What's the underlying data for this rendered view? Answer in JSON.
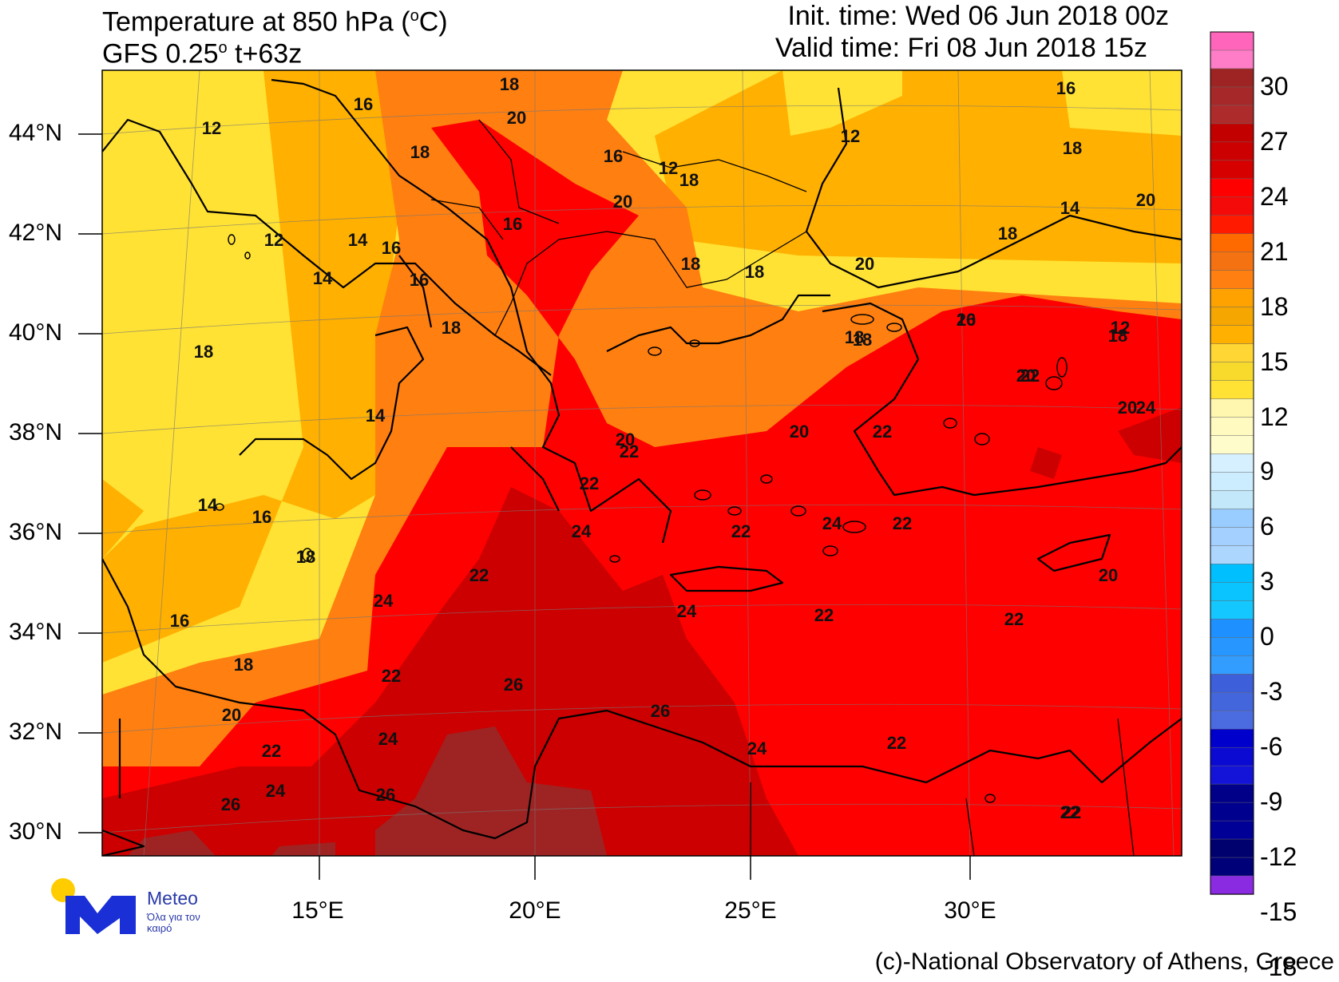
{
  "header": {
    "title_line1_pre": "Temperature at 850 hPa (",
    "title_line1_unit": "o",
    "title_line1_post": "C)",
    "title_line2_pre": "GFS 0.25",
    "title_line2_unit": "o",
    "title_line2_post": " t+63z",
    "init_time": "Init. time: Wed 06 Jun 2018 00z",
    "valid_time": "Valid time: Fri 08 Jun 2018 15z"
  },
  "axes": {
    "lat_labels": [
      "44°N",
      "42°N",
      "40°N",
      "38°N",
      "36°N",
      "34°N",
      "32°N",
      "30°N"
    ],
    "lon_labels": [
      "15°E",
      "20°E",
      "25°E",
      "30°E"
    ]
  },
  "colorbar": {
    "labels": [
      "30",
      "27",
      "24",
      "21",
      "18",
      "15",
      "12",
      "9",
      "6",
      "3",
      "0",
      "-3",
      "-6",
      "-9",
      "-12",
      "-15",
      "-18"
    ],
    "colors_top_to_bottom": [
      "#ff66bb",
      "#ff7dc6",
      "#9e2424",
      "#a62828",
      "#ae2b2b",
      "#c20000",
      "#cc0000",
      "#d60000",
      "#ff0000",
      "#f50a0a",
      "#ff1a00",
      "#ff6a00",
      "#f57212",
      "#ff7f10",
      "#ffa200",
      "#f5a600",
      "#ffb000",
      "#ffd633",
      "#f8da2c",
      "#ffe233",
      "#fff7b0",
      "#fffac0",
      "#fffccc",
      "#d6f0ff",
      "#ccecff",
      "#c2e8fa",
      "#99ccff",
      "#a3d0ff",
      "#add6ff",
      "#00bfff",
      "#0ac4ff",
      "#14c8ff",
      "#1e90ff",
      "#2896ff",
      "#329cff",
      "#3d5fd9",
      "#4366dd",
      "#4a6ce0",
      "#0000cc",
      "#0a0ad2",
      "#1414d9",
      "#000088",
      "#00008f",
      "#000096",
      "#00006f",
      "#000078",
      "#8a2be2"
    ]
  },
  "contour_labels": [
    "12",
    "16",
    "18",
    "20",
    "18",
    "16",
    "12",
    "12",
    "14",
    "14",
    "14",
    "16",
    "18",
    "12",
    "16",
    "18",
    "18",
    "20",
    "18",
    "16",
    "18",
    "20",
    "12",
    "16",
    "18",
    "18",
    "20",
    "20",
    "18",
    "20",
    "16",
    "18",
    "22",
    "20",
    "14",
    "18",
    "20",
    "22",
    "22",
    "20",
    "22",
    "24",
    "14",
    "16",
    "18",
    "22",
    "24",
    "22",
    "22",
    "24",
    "20",
    "24",
    "16",
    "24",
    "22",
    "22",
    "18",
    "22",
    "26",
    "26",
    "20",
    "22",
    "24",
    "24",
    "22",
    "22",
    "26",
    "24",
    "26",
    "22"
  ],
  "logo": {
    "name": "Meteo",
    "tagline": "Όλα για τον καιρό"
  },
  "credit": "(c)-National Observatory of Athens, Greece"
}
